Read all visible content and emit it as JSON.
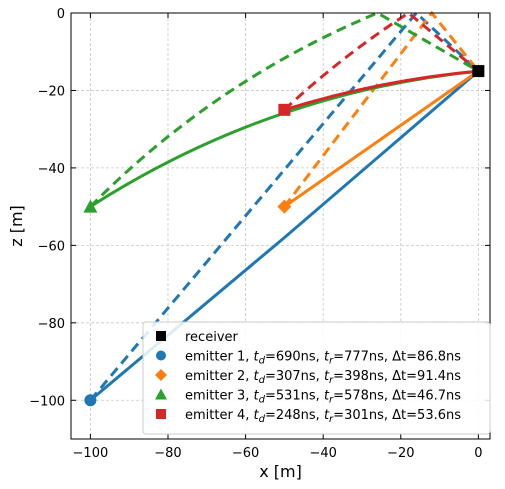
{
  "chart_data": {
    "type": "line",
    "xlabel": "x [m]",
    "ylabel": "z [m]",
    "xlim": [
      -105,
      3
    ],
    "ylim": [
      -110,
      0
    ],
    "xticks": [
      -100,
      -80,
      -60,
      -40,
      -20,
      0
    ],
    "yticks": [
      0,
      -20,
      -40,
      -60,
      -80,
      -100
    ],
    "xtick_labels": [
      "−100",
      "−80",
      "−60",
      "−40",
      "−20",
      "0"
    ],
    "ytick_labels": [
      "0",
      "−20",
      "−40",
      "−60",
      "−80",
      "−100"
    ],
    "grid": true,
    "legend_position": "lower-right",
    "receiver": {
      "name": "receiver",
      "x": 0,
      "z": -15,
      "marker": "square",
      "color": "#000000"
    },
    "series": [
      {
        "name": "emitter 1",
        "legend": {
          "pre": "emitter 1, ",
          "td": "690ns",
          "tr": "777ns",
          "dt": "86.8ns"
        },
        "color": "#1f77b4",
        "marker": "circle",
        "emitter": {
          "x": -100,
          "z": -100
        },
        "direct": [
          [
            -100,
            -100
          ],
          [
            -50,
            -58
          ],
          [
            0,
            -15
          ]
        ],
        "direct_bend": 0,
        "reflected": [
          [
            -100,
            -100
          ],
          [
            -16,
            0
          ],
          [
            0,
            -15
          ]
        ]
      },
      {
        "name": "emitter 2",
        "legend": {
          "pre": "emitter 2, ",
          "td": "307ns",
          "tr": "398ns",
          "dt": "91.4ns"
        },
        "color": "#ff7f0e",
        "marker": "diamond",
        "emitter": {
          "x": -50,
          "z": -50
        },
        "direct": [
          [
            -50,
            -50
          ],
          [
            0,
            -15
          ]
        ],
        "direct_bend": 0,
        "reflected": [
          [
            -50,
            -50
          ],
          [
            -12,
            0
          ],
          [
            0,
            -15
          ]
        ]
      },
      {
        "name": "emitter 3",
        "legend": {
          "pre": "emitter 3, ",
          "td": "531ns",
          "tr": "578ns",
          "dt": "46.7ns"
        },
        "color": "#2ca02c",
        "marker": "triangle",
        "emitter": {
          "x": -100,
          "z": -50
        },
        "direct": [
          [
            -100,
            -50
          ],
          [
            0,
            -15
          ]
        ],
        "direct_bend": 14,
        "reflected": [
          [
            -100,
            -50
          ],
          [
            -26,
            0
          ],
          [
            0,
            -15
          ]
        ],
        "reflected_bend": 10
      },
      {
        "name": "emitter 4",
        "legend": {
          "pre": "emitter 4, ",
          "td": "248ns",
          "tr": "301ns",
          "dt": "53.6ns"
        },
        "color": "#d62728",
        "marker": "square",
        "emitter": {
          "x": -50,
          "z": -25
        },
        "direct": [
          [
            -50,
            -25
          ],
          [
            0,
            -15
          ]
        ],
        "direct_bend": 3,
        "reflected": [
          [
            -50,
            -25
          ],
          [
            -18,
            0
          ],
          [
            0,
            -15
          ]
        ],
        "reflected_bend": 2
      }
    ]
  }
}
